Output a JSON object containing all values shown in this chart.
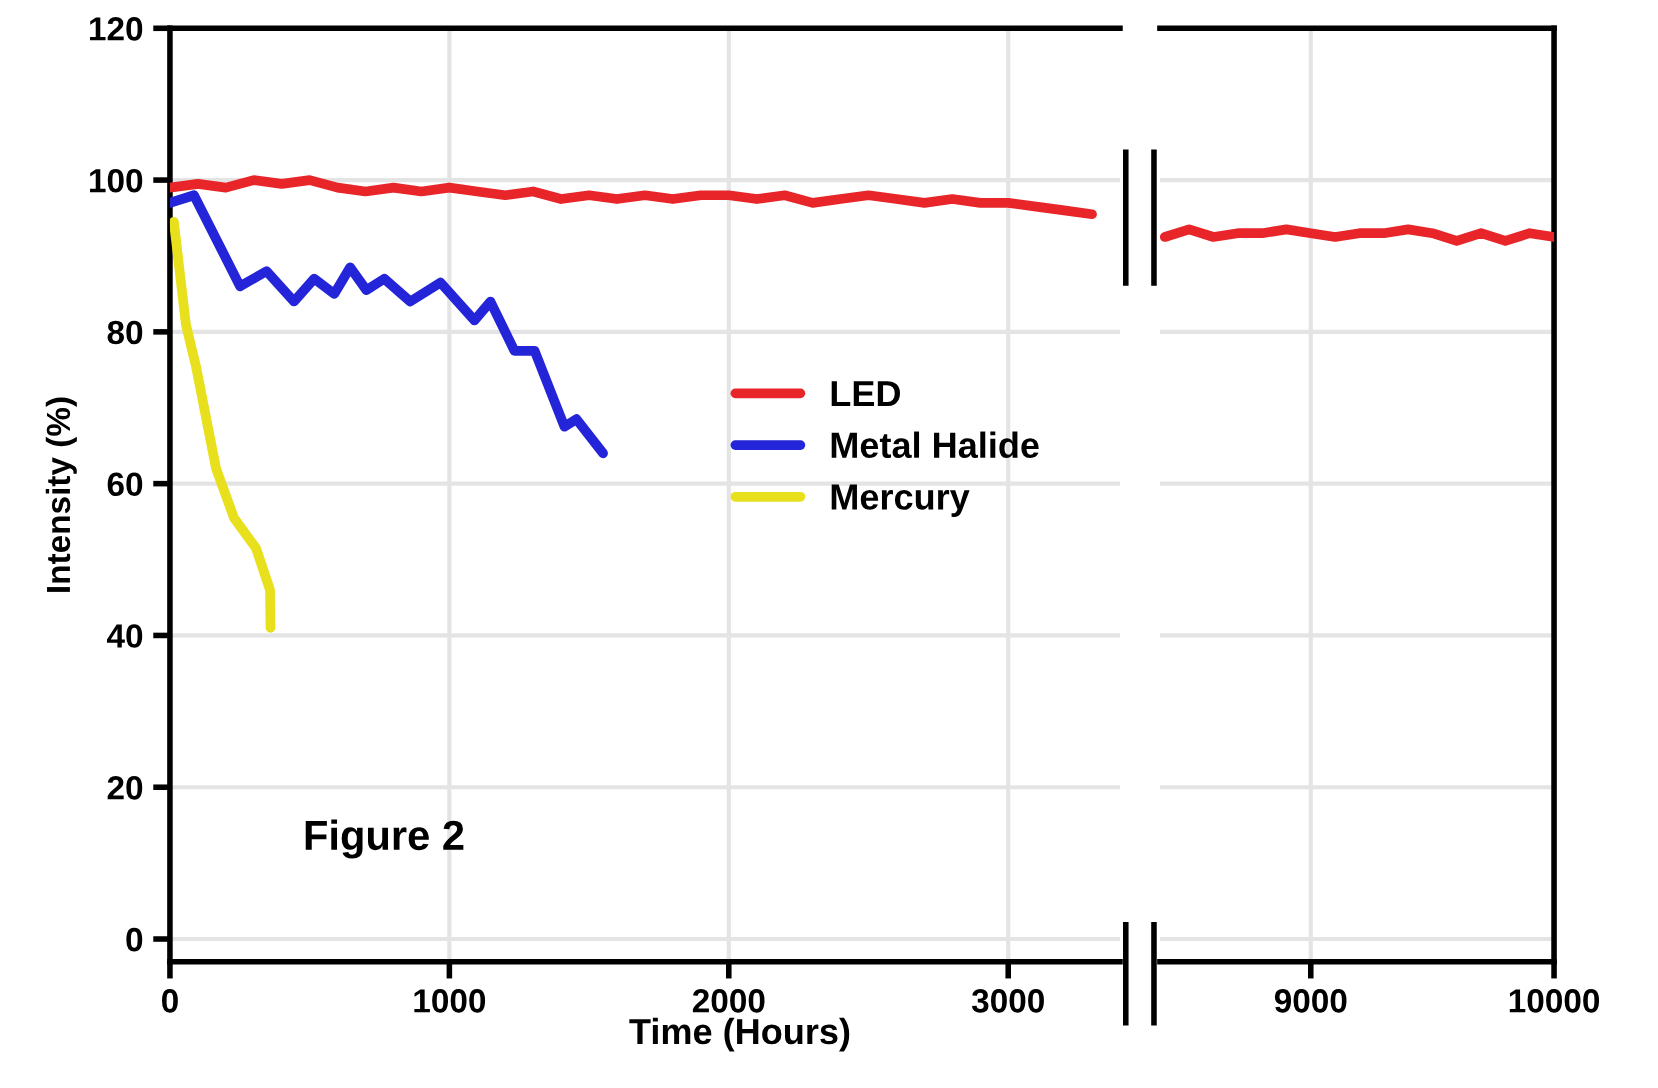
{
  "chart_data": [
    {
      "type": "line",
      "xlabel": "Time (Hours)",
      "ylabel": "Intensity (%)",
      "xlim": [
        0,
        3400
      ],
      "xticks": [
        0,
        1000,
        2000,
        3000
      ],
      "ylim": [
        -3,
        120
      ],
      "yticks": [
        0,
        20,
        40,
        60,
        80,
        100,
        120
      ],
      "grid": true,
      "legend": "center right",
      "marker": "none",
      "line_style": "solid",
      "annotations": [
        "Figure 2"
      ],
      "series": [
        {
          "name": "LED",
          "color": "#e8262a",
          "x": [
            0,
            100,
            200,
            300,
            400,
            500,
            600,
            700,
            800,
            900,
            1000,
            1100,
            1200,
            1300,
            1400,
            1500,
            1600,
            1700,
            1800,
            1900,
            2000,
            2100,
            2200,
            2300,
            2400,
            2500,
            2600,
            2700,
            2800,
            2900,
            3000,
            3100,
            3200,
            3300
          ],
          "values": [
            99,
            99.5,
            99,
            100,
            99.5,
            100,
            99,
            98.5,
            99,
            98.5,
            99,
            98.5,
            98,
            98.5,
            97.5,
            98,
            97.5,
            98,
            97.5,
            98,
            98,
            97.5,
            98,
            97,
            97.5,
            98,
            97.5,
            97,
            97.5,
            97,
            97,
            96.5,
            96,
            95.5
          ]
        },
        {
          "name": "Metal Halide",
          "color": "#2424d8",
          "x": [
            0,
            86,
            251,
            346,
            444,
            516,
            588,
            645,
            703,
            767,
            860,
            968,
            1090,
            1147,
            1233,
            1305,
            1412,
            1455,
            1550
          ],
          "values": [
            97,
            98,
            86,
            88,
            84,
            87,
            85,
            88.5,
            85.5,
            87,
            84,
            86.5,
            81.5,
            84,
            77.5,
            77.5,
            67.5,
            68.5,
            64
          ]
        },
        {
          "name": "Mercury",
          "color": "#e8e01c",
          "x": [
            14,
            57,
            93,
            165,
            229,
            308,
            358,
            360
          ],
          "values": [
            94.5,
            81,
            75.5,
            62,
            55.5,
            51.5,
            46,
            41
          ]
        }
      ]
    },
    {
      "type": "line",
      "xlim": [
        8380,
        10000
      ],
      "xticks": [
        9000,
        10000
      ],
      "ylim": [
        -3,
        120
      ],
      "grid": true,
      "tick_labels": "x",
      "marker": "none",
      "line_style": "solid",
      "series": [
        {
          "color": "#e8262a",
          "x": [
            8400,
            8500,
            8600,
            8700,
            8800,
            8900,
            9000,
            9100,
            9200,
            9300,
            9400,
            9500,
            9600,
            9700,
            9800,
            9900,
            10000
          ],
          "values": [
            92.5,
            93.5,
            92.5,
            93,
            93,
            93.5,
            93,
            92.5,
            93,
            93,
            93.5,
            93,
            92,
            93,
            92,
            93,
            92.5
          ]
        }
      ]
    }
  ]
}
